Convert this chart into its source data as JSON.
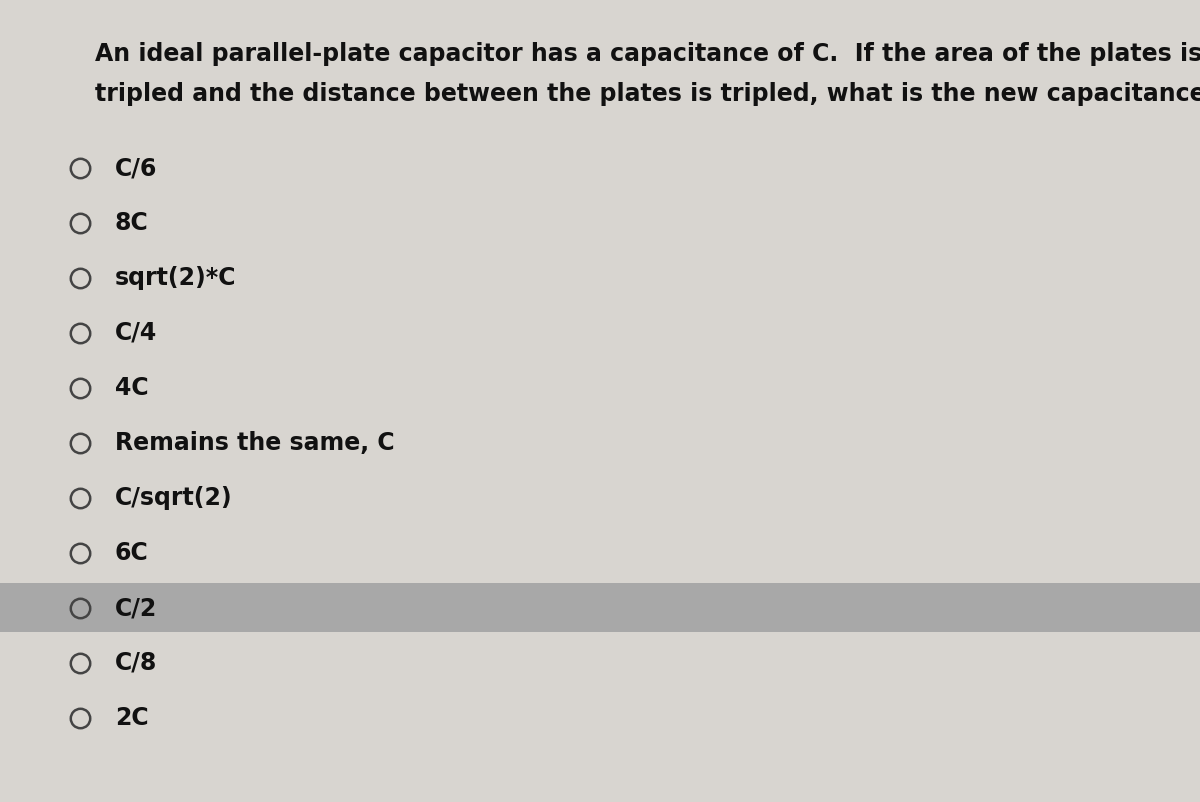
{
  "question_line1": "An ideal parallel-plate capacitor has a capacitance of C.  If the area of the plates is",
  "question_line2": "tripled and the distance between the plates is tripled, what is the new capacitance?",
  "options": [
    "C/6",
    "8C",
    "sqrt(2)*C",
    "C/4",
    "4C",
    "Remains the same, C",
    "C/sqrt(2)",
    "6C",
    "C/2",
    "C/8",
    "2C"
  ],
  "highlighted_option_index": 8,
  "background_color": "#d8d5d0",
  "highlight_color": "#a8a8a8",
  "text_color": "#111111",
  "question_fontsize": 17,
  "option_fontsize": 17,
  "fig_width": 12.0,
  "fig_height": 8.02
}
